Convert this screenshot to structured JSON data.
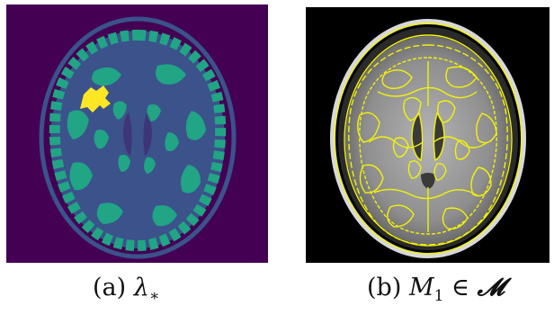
{
  "captions": {
    "a": {
      "prefix": "(a) ",
      "symbol": "λ",
      "subscript": "∗"
    },
    "b": {
      "prefix": "(b) ",
      "symbol": "M",
      "subscript": "1",
      "relation": " ∈ ",
      "set": "𝓜"
    }
  },
  "colors": {
    "background_a": "#440154",
    "dark_class": "#3b528b",
    "tissue_class": "#21a585",
    "highlight_class": "#fde725",
    "background_b": "#000000",
    "brain_gray": "#9a9a9a",
    "contour": "#f2f20a"
  }
}
